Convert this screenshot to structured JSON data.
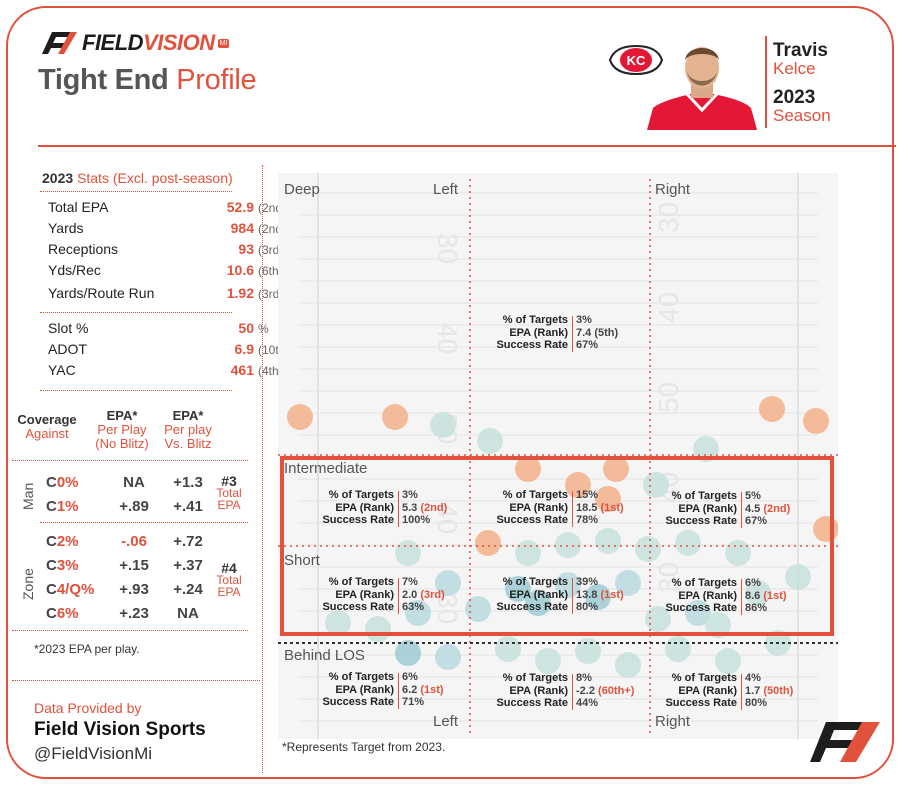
{
  "brand": {
    "name_black": "FIELD",
    "name_red": "VISION",
    "badge": "MI"
  },
  "title": {
    "part1": "Tight End",
    "part2": "Profile"
  },
  "player": {
    "first": "Travis",
    "last": "Kelce",
    "year": "2023",
    "season": "Season"
  },
  "colors": {
    "accent": "#e0523c",
    "text": "#2a2a2a",
    "field": "#f5f5f5"
  },
  "stats": {
    "title_bold": "2023",
    "title_rest": "Stats (Excl. post-season)",
    "rows": [
      {
        "label": "Total EPA",
        "value": "52.9",
        "rank": "(2nd)"
      },
      {
        "label": "Yards",
        "value": "984",
        "rank": "(2nd)"
      },
      {
        "label": "Receptions",
        "value": "93",
        "rank": "(3rd)"
      },
      {
        "label": "Yds/Rec",
        "value": "10.6",
        "rank": "(6th)"
      },
      {
        "label": "Yards/Route Run",
        "value": "1.92",
        "rank": "(3rd)"
      }
    ],
    "rows2": [
      {
        "label": "Slot %",
        "value": "50",
        "rank": "%"
      },
      {
        "label": "ADOT",
        "value": "6.9",
        "rank": "(10th)"
      },
      {
        "label": "YAC",
        "value": "461",
        "rank": "(4th)"
      }
    ]
  },
  "coverage": {
    "hdr_line1": "Coverage",
    "hdr_line2": "Against",
    "col1": [
      "EPA*",
      "Per Play",
      "(No Blitz)"
    ],
    "col2": [
      "EPA*",
      "Per play",
      "Vs. Blitz"
    ],
    "man_label": "Man",
    "zone_label": "Zone",
    "man_rows": [
      {
        "c": "C",
        "n": "0%",
        "a": "NA",
        "b": "+1.3"
      },
      {
        "c": "C",
        "n": "1%",
        "a": "+.89",
        "b": "+.41"
      }
    ],
    "zone_rows": [
      {
        "c": "C",
        "n": "2%",
        "a": "-.06",
        "b": "+.72"
      },
      {
        "c": "C",
        "n": "3%",
        "a": "+.15",
        "b": "+.37"
      },
      {
        "c": "C",
        "n": "4/Q%",
        "a": "+.93",
        "b": "+.24"
      },
      {
        "c": "C",
        "n": "6%",
        "a": "+.23",
        "b": "NA"
      }
    ],
    "man_rank": [
      "#3",
      "Total",
      "EPA"
    ],
    "zone_rank": [
      "#4",
      "Total",
      "EPA"
    ],
    "footnote": "*2023 EPA per play."
  },
  "credits": {
    "provided": "Data Provided by",
    "company": "Field Vision Sports",
    "handle": "@FieldVisionMi"
  },
  "field": {
    "zones": [
      "Deep",
      "Intermediate",
      "Short",
      "Behind LOS"
    ],
    "left": "Left",
    "right": "Right",
    "yard_numbers": [
      "30",
      "40",
      "50",
      "40",
      "30"
    ],
    "keys": [
      "% of Targets",
      "EPA (Rank)",
      "Success Rate"
    ],
    "cells": {
      "deep": {
        "pct": "3%",
        "epa": "7.4",
        "rank": "(5th)",
        "sr": "67%"
      },
      "int_left": {
        "pct": "3%",
        "epa": "5.3",
        "rank": "(2nd)",
        "sr": "100%"
      },
      "int_mid": {
        "pct": "15%",
        "epa": "18.5",
        "rank": "(1st)",
        "sr": "78%"
      },
      "int_right": {
        "pct": "5%",
        "epa": "4.5",
        "rank": "(2nd)",
        "sr": "67%"
      },
      "short_left": {
        "pct": "7%",
        "epa": "2.0",
        "rank": "(3rd)",
        "sr": "63%"
      },
      "short_mid": {
        "pct": "39%",
        "epa": "13.8",
        "rank": "(1st)",
        "sr": "80%"
      },
      "short_right": {
        "pct": "6%",
        "epa": "8.6",
        "rank": "(1st)",
        "sr": "86%"
      },
      "blos_left": {
        "pct": "6%",
        "epa": "6.2",
        "rank": "(1st)",
        "sr": "71%"
      },
      "blos_mid": {
        "pct": "8%",
        "epa": "-2.2",
        "rank": "(60th+)",
        "sr": "44%"
      },
      "blos_right": {
        "pct": "4%",
        "epa": "1.7",
        "rank": "(50th)",
        "sr": "80%"
      }
    },
    "note": "*Represents Target from 2023."
  }
}
